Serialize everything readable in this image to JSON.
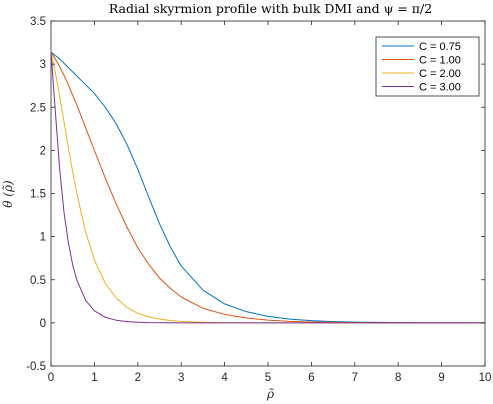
{
  "chart_data": {
    "type": "line",
    "title": "Radial skyrmion profile with bulk DMI and ψ = π/2",
    "xlabel": "ρ̃",
    "ylabel": "θ (ρ̃)",
    "xlim": [
      0,
      10
    ],
    "ylim": [
      -0.5,
      3.5
    ],
    "xticks": [
      0,
      1,
      2,
      3,
      4,
      5,
      6,
      7,
      8,
      9,
      10
    ],
    "yticks": [
      -0.5,
      0,
      0.5,
      1,
      1.5,
      2,
      2.5,
      3,
      3.5
    ],
    "ytick_labels": [
      "-0.5",
      "0",
      "0.5",
      "1",
      "1.5",
      "2",
      "2.5",
      "3",
      "3.5"
    ],
    "grid": false,
    "legend_position": "top-right",
    "x": [
      0,
      0.1,
      0.2,
      0.3,
      0.4,
      0.5,
      0.6,
      0.8,
      1.0,
      1.25,
      1.5,
      1.75,
      2.0,
      2.25,
      2.5,
      2.75,
      3.0,
      3.5,
      4.0,
      4.5,
      5.0,
      5.5,
      6.0,
      6.5,
      7.0,
      8.0,
      9.0,
      10.0
    ],
    "series": [
      {
        "name": "C = 0.75",
        "color": "#0072BD",
        "values": [
          3.14,
          3.1,
          3.06,
          3.01,
          2.96,
          2.91,
          2.86,
          2.76,
          2.66,
          2.5,
          2.31,
          2.07,
          1.78,
          1.46,
          1.15,
          0.88,
          0.66,
          0.38,
          0.22,
          0.13,
          0.075,
          0.044,
          0.026,
          0.015,
          0.009,
          0.003,
          0.001,
          0.0
        ]
      },
      {
        "name": "C = 1.00",
        "color": "#D95319",
        "values": [
          3.14,
          3.06,
          2.97,
          2.87,
          2.76,
          2.64,
          2.52,
          2.26,
          2.0,
          1.68,
          1.38,
          1.11,
          0.87,
          0.68,
          0.52,
          0.4,
          0.3,
          0.17,
          0.098,
          0.056,
          0.032,
          0.018,
          0.01,
          0.006,
          0.003,
          0.001,
          0.0,
          0.0
        ]
      },
      {
        "name": "C = 2.00",
        "color": "#EDB120",
        "values": [
          3.14,
          2.9,
          2.63,
          2.33,
          2.03,
          1.75,
          1.49,
          1.05,
          0.73,
          0.46,
          0.29,
          0.18,
          0.11,
          0.07,
          0.045,
          0.028,
          0.017,
          0.007,
          0.003,
          0.001,
          0.0,
          0.0,
          0.0,
          0.0,
          0.0,
          0.0,
          0.0,
          0.0
        ]
      },
      {
        "name": "C = 3.00",
        "color": "#7E2F8E",
        "values": [
          3.14,
          2.45,
          1.78,
          1.28,
          0.93,
          0.67,
          0.49,
          0.26,
          0.14,
          0.065,
          0.031,
          0.015,
          0.007,
          0.003,
          0.002,
          0.001,
          0.0,
          0.0,
          0.0,
          0.0,
          0.0,
          0.0,
          0.0,
          0.0,
          0.0,
          0.0,
          0.0,
          0.0
        ]
      }
    ]
  }
}
